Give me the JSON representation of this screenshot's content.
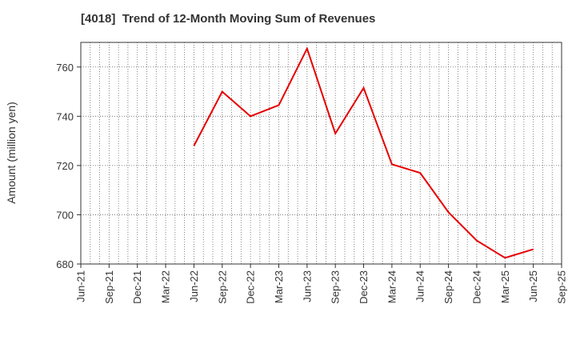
{
  "chart_data": {
    "type": "line",
    "title": "[4018]  Trend of 12-Month Moving Sum of Revenues",
    "ylabel": "Amount (million yen)",
    "xlabel": "",
    "ylim": [
      680,
      770
    ],
    "yticks": [
      680,
      700,
      720,
      740,
      760
    ],
    "x_tick_labels": [
      "Jun-21",
      "Sep-21",
      "Dec-21",
      "Mar-22",
      "Jun-22",
      "Sep-22",
      "Dec-22",
      "Mar-23",
      "Jun-23",
      "Sep-23",
      "Dec-23",
      "Mar-24",
      "Jun-24",
      "Sep-24",
      "Dec-24",
      "Mar-25",
      "Jun-25",
      "Sep-25"
    ],
    "grid": true,
    "series": [
      {
        "color": "#e60000",
        "x": [
          "Jun-22",
          "Sep-22",
          "Dec-22",
          "Mar-23",
          "Jun-23",
          "Sep-23",
          "Dec-23",
          "Mar-24",
          "Jun-24",
          "Sep-24",
          "Dec-24",
          "Mar-25",
          "Jun-25"
        ],
        "values": [
          728,
          750,
          740,
          744.5,
          767.5,
          733,
          751.5,
          720.5,
          717,
          701,
          689.5,
          682.5,
          686
        ]
      }
    ]
  }
}
